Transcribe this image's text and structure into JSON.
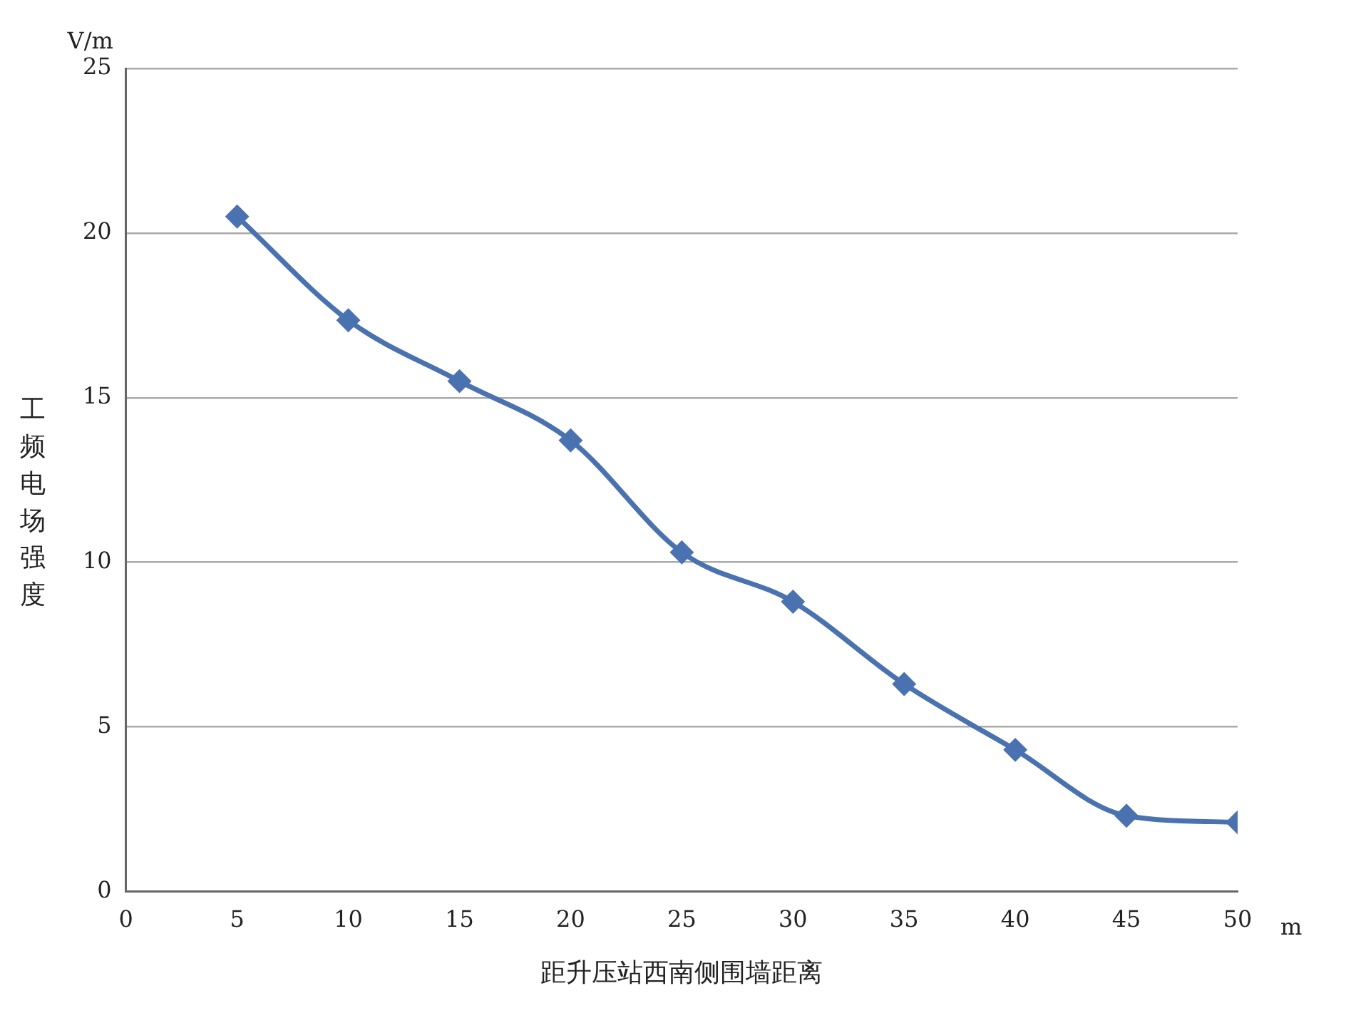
{
  "chart_data": {
    "type": "line",
    "xlabel": "距升压站西南侧围墙距离",
    "ylabel": "工频电场强度",
    "annotations": [
      "V/m",
      "m"
    ],
    "x": [
      5,
      10,
      15,
      20,
      25,
      30,
      35,
      40,
      45,
      50
    ],
    "series": [
      {
        "color": "#4a72b0",
        "values": [
          20.5,
          17.35,
          15.5,
          13.7,
          10.3,
          8.8,
          6.3,
          4.3,
          2.3,
          2.1
        ]
      }
    ],
    "xlim": [
      0,
      50
    ],
    "xticks": [
      0,
      5,
      10,
      15,
      20,
      25,
      30,
      35,
      40,
      45,
      50
    ],
    "ylim": [
      0,
      25
    ],
    "yticks": [
      0,
      5,
      10,
      15,
      20,
      25
    ],
    "grid": "y",
    "legend": false,
    "marker": "diamond",
    "line_style": "solid"
  }
}
